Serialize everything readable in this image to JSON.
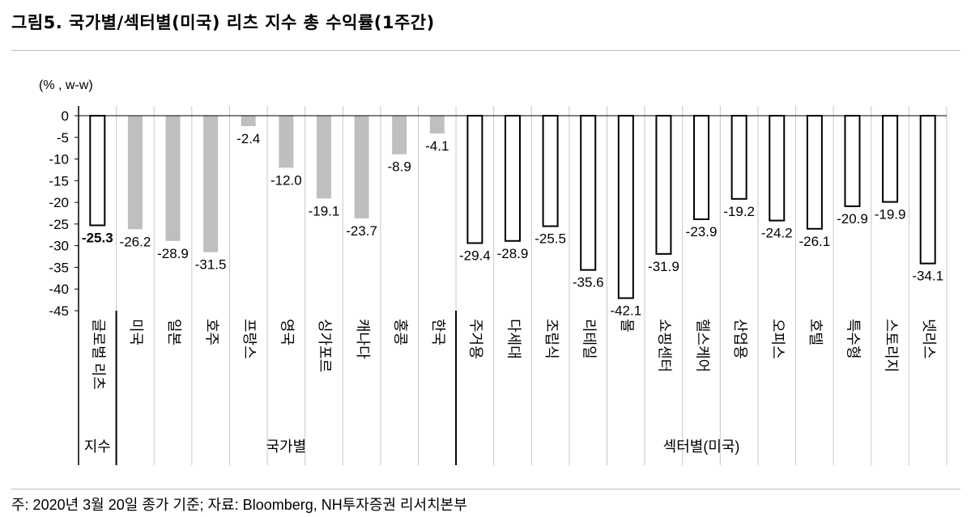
{
  "figure": {
    "title": "그림5.  국가별/섹터별(미국) 리츠 지수 총 수익률(1주간)",
    "source": "주: 2020년 3월 20일 종가 기준; 자료: Bloomberg, NH투자증권 리서치본부"
  },
  "chart_data": {
    "type": "bar",
    "title": "국가별/섹터별(미국) 리츠 지수 총 수익률(1주간)",
    "unit_label": "(% , w-w)",
    "ylim": [
      -45,
      0
    ],
    "yticks": [
      0,
      -5,
      -10,
      -15,
      -20,
      -25,
      -30,
      -35,
      -40,
      -45
    ],
    "categories": [
      "글로벌 리츠",
      "미국",
      "일본",
      "호주",
      "프랑스",
      "영국",
      "싱가포르",
      "캐나다",
      "홍콩",
      "한국",
      "주거용",
      "다세대",
      "조립식",
      "리테일",
      "몰",
      "쇼핑센터",
      "헬스케어",
      "산업용",
      "오피스",
      "호텔",
      "특수형",
      "스토리지",
      "넷리스"
    ],
    "values": [
      -25.3,
      -26.2,
      -28.9,
      -31.5,
      -2.4,
      -12.0,
      -19.1,
      -23.7,
      -8.9,
      -4.1,
      -29.4,
      -28.9,
      -25.5,
      -35.6,
      -42.1,
      -31.9,
      -23.9,
      -19.2,
      -24.2,
      -26.1,
      -20.9,
      -19.9,
      -34.1
    ],
    "value_labels": [
      "-25.3",
      "-26.2",
      "-28.9",
      "-31.5",
      "-2.4",
      "-12.0",
      "-19.1",
      "-23.7",
      "-8.9",
      "-4.1",
      "-29.4",
      "-28.9",
      "-25.5",
      "-35.6",
      "-42.1",
      "-31.9",
      "-23.9",
      "-19.2",
      "-24.2",
      "-26.1",
      "-20.9",
      "-19.9",
      "-34.1"
    ],
    "styles": [
      "outline",
      "filled",
      "filled",
      "filled",
      "filled",
      "filled",
      "filled",
      "filled",
      "filled",
      "filled",
      "outline",
      "outline",
      "outline",
      "outline",
      "outline",
      "outline",
      "outline",
      "outline",
      "outline",
      "outline",
      "outline",
      "outline",
      "outline"
    ],
    "groups": [
      {
        "label": "지수",
        "count": 1
      },
      {
        "label": "국가별",
        "count": 9
      },
      {
        "label": "섹터별(미국)",
        "count": 13
      }
    ],
    "colors": {
      "filled": "#bfbfbf",
      "outline_fill": "#ffffff",
      "outline_stroke": "#000000",
      "grid": "#c8c8c8"
    }
  }
}
